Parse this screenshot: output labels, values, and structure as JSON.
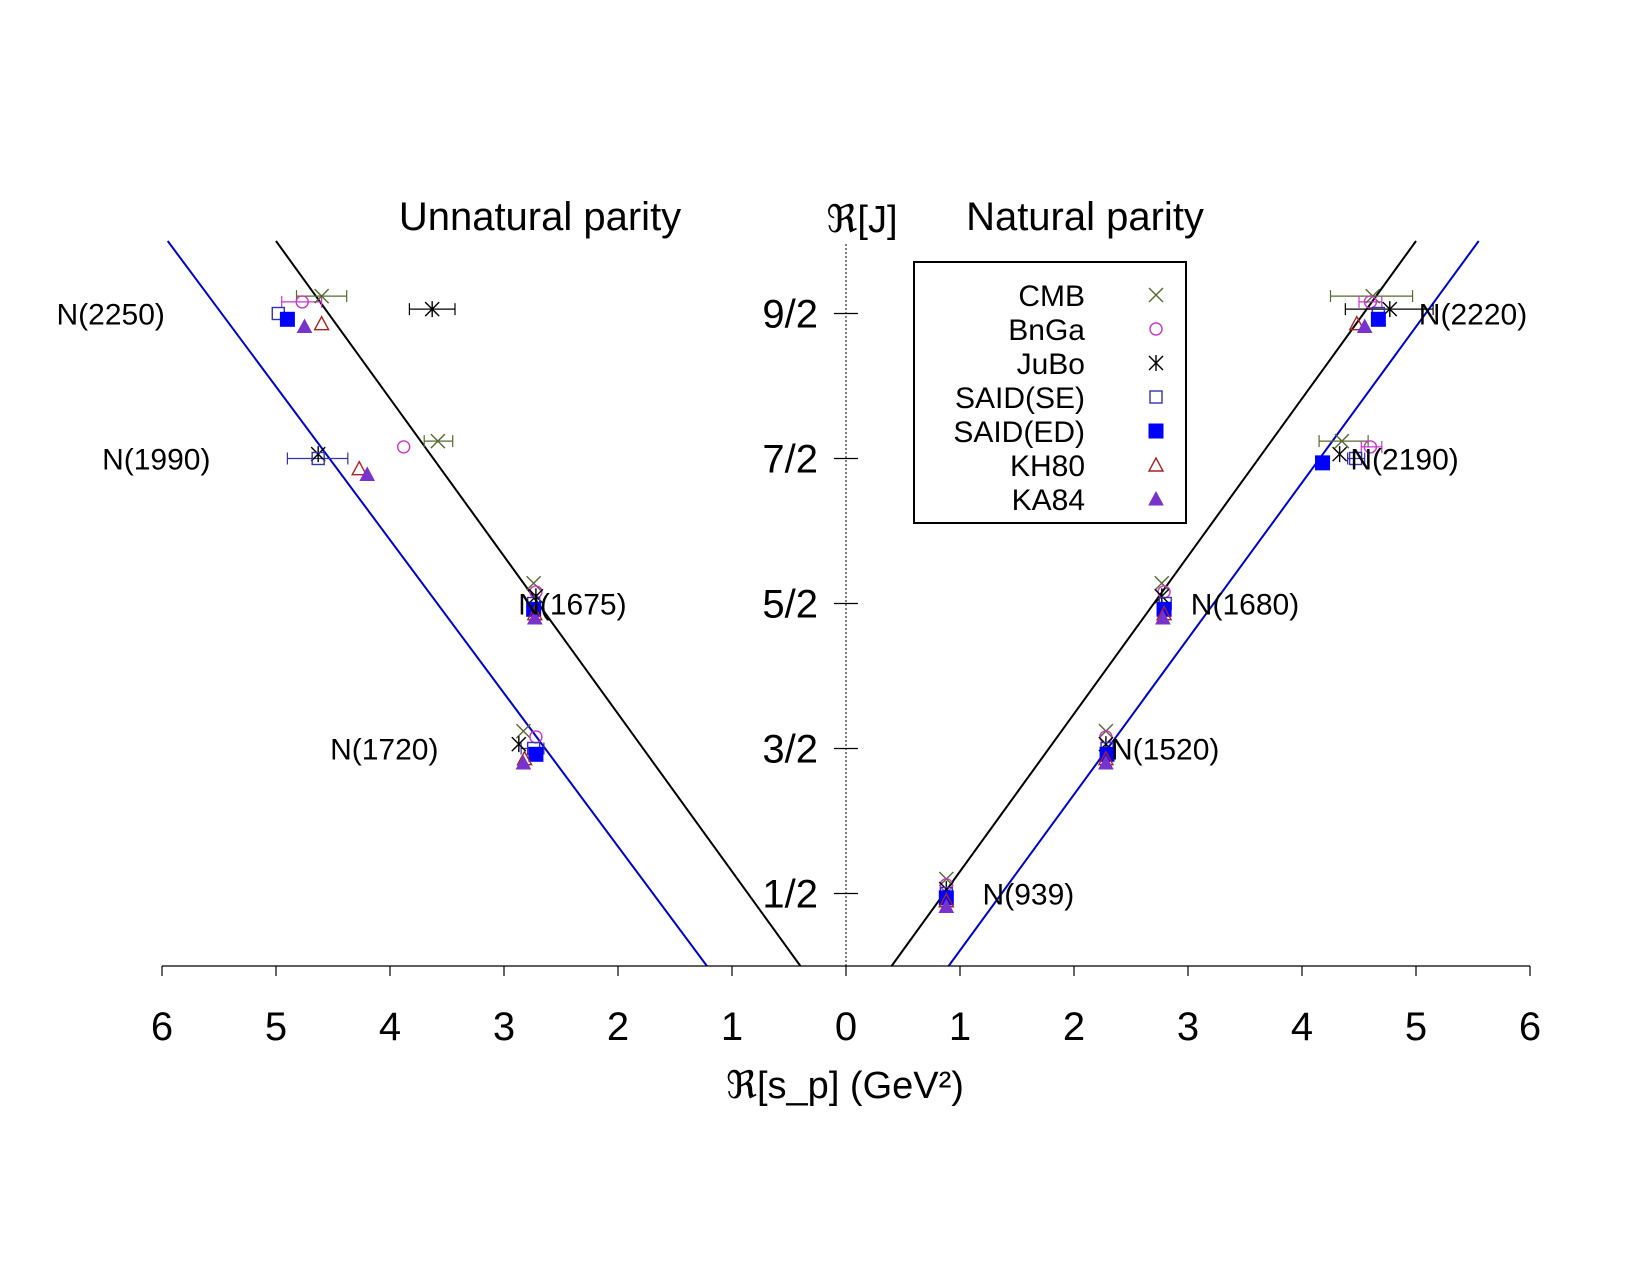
{
  "chart_data": {
    "type": "scatter",
    "x_axis_label": "ℜ[s_p] (GeV²)",
    "y_axis_label": "ℜ[J]",
    "xlim": [
      -6,
      6
    ],
    "ylim": [
      0,
      5.5
    ],
    "x_ticks": [
      -6,
      -5,
      -4,
      -3,
      -2,
      -1,
      0,
      1,
      2,
      3,
      4,
      5,
      6
    ],
    "x_tick_labels": [
      "6",
      "5",
      "4",
      "3",
      "2",
      "1",
      "0",
      "1",
      "2",
      "3",
      "4",
      "5",
      "6"
    ],
    "y_ticks": [
      0.5,
      1.5,
      2.5,
      3.5,
      4.5
    ],
    "y_tick_labels": [
      "1/2",
      "3/2",
      "5/2",
      "7/2",
      "9/2"
    ],
    "panel_titles": [
      {
        "text": "Unnatural parity",
        "side": "left"
      },
      {
        "text": "Natural parity",
        "side": "right"
      }
    ],
    "legend": {
      "placement": "top-center-right",
      "entries": [
        "CMB",
        "BnGa",
        "JuBo",
        "SAID(SE)",
        "SAID(ED)",
        "KH80",
        "KA84"
      ]
    },
    "series": [
      {
        "name": "CMB",
        "color": "#556b2f",
        "marker": "x",
        "points": [
          {
            "x": 0.88,
            "y": 0.6
          },
          {
            "x": 2.28,
            "y": 1.62
          },
          {
            "x": 2.77,
            "y": 2.64
          },
          {
            "x": 4.35,
            "y": 3.62
          },
          {
            "x": 4.62,
            "y": 4.62
          },
          {
            "x": -2.83,
            "y": 1.62
          },
          {
            "x": -2.74,
            "y": 2.64
          },
          {
            "x": -3.58,
            "y": 3.62
          },
          {
            "x": -4.6,
            "y": 4.62
          }
        ]
      },
      {
        "name": "BnGa",
        "color": "#cc33cc",
        "marker": "circle",
        "points": [
          {
            "x": 0.88,
            "y": 0.56
          },
          {
            "x": 2.28,
            "y": 1.58
          },
          {
            "x": 2.79,
            "y": 2.58
          },
          {
            "x": 4.6,
            "y": 3.58
          },
          {
            "x": 4.6,
            "y": 4.58
          },
          {
            "x": -2.72,
            "y": 1.58
          },
          {
            "x": -2.72,
            "y": 2.58
          },
          {
            "x": -3.88,
            "y": 3.58
          },
          {
            "x": -4.77,
            "y": 4.58
          }
        ]
      },
      {
        "name": "JuBo",
        "color": "#000000",
        "marker": "asterisk",
        "points": [
          {
            "x": 0.88,
            "y": 0.53
          },
          {
            "x": 2.28,
            "y": 1.53
          },
          {
            "x": 2.77,
            "y": 2.55
          },
          {
            "x": 4.33,
            "y": 3.53
          },
          {
            "x": 4.77,
            "y": 4.53
          },
          {
            "x": -2.87,
            "y": 1.53
          },
          {
            "x": -2.72,
            "y": 2.55
          },
          {
            "x": -4.63,
            "y": 3.53
          },
          {
            "x": -3.63,
            "y": 4.53
          }
        ]
      },
      {
        "name": "SAID(SE)",
        "color": "#3333aa",
        "marker": "square",
        "points": [
          {
            "x": 0.88,
            "y": 0.5
          },
          {
            "x": 2.29,
            "y": 1.5
          },
          {
            "x": 2.8,
            "y": 2.5
          },
          {
            "x": 4.47,
            "y": 3.5
          },
          {
            "x": 4.67,
            "y": 4.5
          },
          {
            "x": -2.74,
            "y": 1.5
          },
          {
            "x": -2.74,
            "y": 2.5
          },
          {
            "x": -4.63,
            "y": 3.5
          },
          {
            "x": -4.98,
            "y": 4.5
          }
        ]
      },
      {
        "name": "SAID(ED)",
        "color": "#0000ff",
        "marker": "filled-square",
        "points": [
          {
            "x": 0.88,
            "y": 0.47
          },
          {
            "x": 2.29,
            "y": 1.46
          },
          {
            "x": 2.79,
            "y": 2.46
          },
          {
            "x": 4.18,
            "y": 3.47
          },
          {
            "x": 4.67,
            "y": 4.46
          },
          {
            "x": -2.72,
            "y": 1.46
          },
          {
            "x": -2.74,
            "y": 2.46
          },
          {
            "x": -4.9,
            "y": 4.46
          }
        ]
      },
      {
        "name": "KH80",
        "color": "#aa2222",
        "marker": "triangle",
        "points": [
          {
            "x": 0.88,
            "y": 0.45
          },
          {
            "x": 2.28,
            "y": 1.43
          },
          {
            "x": 2.79,
            "y": 2.43
          },
          {
            "x": 4.48,
            "y": 4.43
          },
          {
            "x": -2.82,
            "y": 1.43
          },
          {
            "x": -2.73,
            "y": 2.43
          },
          {
            "x": -4.27,
            "y": 3.43
          },
          {
            "x": -4.6,
            "y": 4.43
          }
        ]
      },
      {
        "name": "KA84",
        "color": "#7733cc",
        "marker": "filled-triangle",
        "points": [
          {
            "x": 0.88,
            "y": 0.41
          },
          {
            "x": 2.28,
            "y": 1.4
          },
          {
            "x": 2.78,
            "y": 2.4
          },
          {
            "x": 4.55,
            "y": 4.41
          },
          {
            "x": -2.83,
            "y": 1.4
          },
          {
            "x": -2.73,
            "y": 2.4
          },
          {
            "x": -4.2,
            "y": 3.39
          },
          {
            "x": -4.75,
            "y": 4.41
          }
        ]
      }
    ],
    "error_bars": [
      {
        "series": "CMB",
        "x": 4.62,
        "y": 4.62,
        "xmin": 4.25,
        "xmax": 4.97
      },
      {
        "series": "CMB",
        "x": -4.6,
        "y": 4.62,
        "xmin": -4.82,
        "xmax": -4.38
      },
      {
        "series": "CMB",
        "x": 4.35,
        "y": 3.62,
        "xmin": 4.15,
        "xmax": 4.58
      },
      {
        "series": "CMB",
        "x": -3.58,
        "y": 3.62,
        "xmin": -3.7,
        "xmax": -3.45
      },
      {
        "series": "BnGa",
        "x": 4.6,
        "y": 4.58,
        "xmin": 4.5,
        "xmax": 4.7
      },
      {
        "series": "BnGa",
        "x": -4.77,
        "y": 4.58,
        "xmin": -4.95,
        "xmax": -4.6
      },
      {
        "series": "BnGa",
        "x": 4.6,
        "y": 3.58,
        "xmin": 4.52,
        "xmax": 4.7
      },
      {
        "series": "JuBo",
        "x": 4.77,
        "y": 4.53,
        "xmin": 4.38,
        "xmax": 5.15
      },
      {
        "series": "JuBo",
        "x": -3.63,
        "y": 4.53,
        "xmin": -3.83,
        "xmax": -3.43
      },
      {
        "series": "SAID(SE)",
        "x": -4.63,
        "y": 3.5,
        "xmin": -4.9,
        "xmax": -4.37
      },
      {
        "series": "SAID(SE)",
        "x": 4.47,
        "y": 3.5,
        "xmin": 4.4,
        "xmax": 4.55
      },
      {
        "series": "SAID(SE)",
        "x": -2.74,
        "y": 1.5,
        "xmin": -2.85,
        "xmax": -2.65
      }
    ],
    "trajectories": [
      {
        "color": "#000000",
        "points": [
          [
            0.4,
            0
          ],
          [
            5.0,
            5.0
          ]
        ]
      },
      {
        "color": "#0000cc",
        "points": [
          [
            0.9,
            0
          ],
          [
            5.55,
            5.0
          ]
        ]
      },
      {
        "color": "#000000",
        "points": [
          [
            -0.4,
            0
          ],
          [
            -5.0,
            5.0
          ]
        ]
      },
      {
        "color": "#0000cc",
        "points": [
          [
            -1.22,
            0
          ],
          [
            -5.95,
            5.0
          ]
        ]
      }
    ],
    "annotations": [
      {
        "text": "N(939)",
        "x": 1.6,
        "y": 0.5
      },
      {
        "text": "N(1520)",
        "x": 2.8,
        "y": 1.5
      },
      {
        "text": "N(1680)",
        "x": 3.5,
        "y": 2.5
      },
      {
        "text": "N(2190)",
        "x": 4.9,
        "y": 3.5
      },
      {
        "text": "N(2220)",
        "x": 5.5,
        "y": 4.5
      },
      {
        "text": "N(1720)",
        "x": -4.05,
        "y": 1.5
      },
      {
        "text": "N(1675)",
        "x": -2.4,
        "y": 2.5
      },
      {
        "text": "N(1990)",
        "x": -6.05,
        "y": 3.5
      },
      {
        "text": "N(2250)",
        "x": -6.45,
        "y": 4.5
      }
    ]
  }
}
